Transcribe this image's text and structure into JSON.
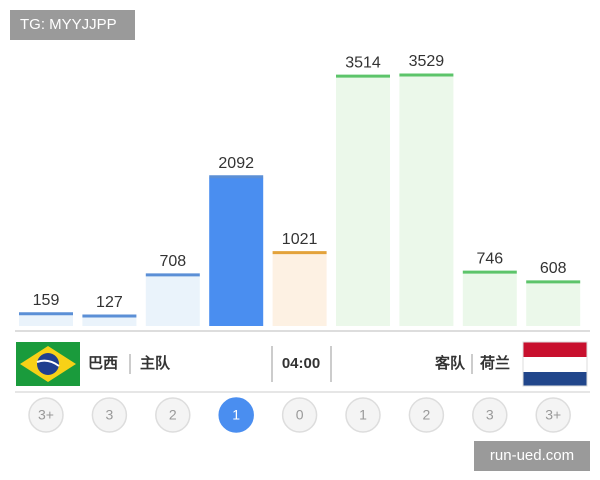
{
  "chart_data": {
    "type": "bar",
    "categories": [
      "3+",
      "3",
      "2",
      "1",
      "0",
      "1",
      "2",
      "3",
      "3+"
    ],
    "values": [
      159,
      127,
      708,
      2092,
      1021,
      3514,
      3529,
      746,
      608
    ],
    "fill_colors": [
      "#eaf3fb",
      "#eaf3fb",
      "#eaf3fb",
      "#4a8ef0",
      "#fdf1e3",
      "#ebf8ea",
      "#ebf8ea",
      "#ebf8ea",
      "#ebf8ea"
    ],
    "line_colors": [
      "#5b8fd6",
      "#5b8fd6",
      "#5b8fd6",
      "#5b8fd6",
      "#e3a23a",
      "#5cc46a",
      "#5cc46a",
      "#5cc46a",
      "#5cc46a"
    ],
    "circle_colors": [
      "#f4f4f4",
      "#f4f4f4",
      "#f4f4f4",
      "#4a8ef0",
      "#f4f4f4",
      "#f4f4f4",
      "#f4f4f4",
      "#f4f4f4",
      "#f4f4f4"
    ]
  },
  "match": {
    "home_team": "巴西",
    "home_label": "主队",
    "time": "04:00",
    "away_label": "客队",
    "away_team": "荷兰"
  },
  "watermarks": [
    "TG: MYYJJPP",
    "run-ued.com"
  ]
}
